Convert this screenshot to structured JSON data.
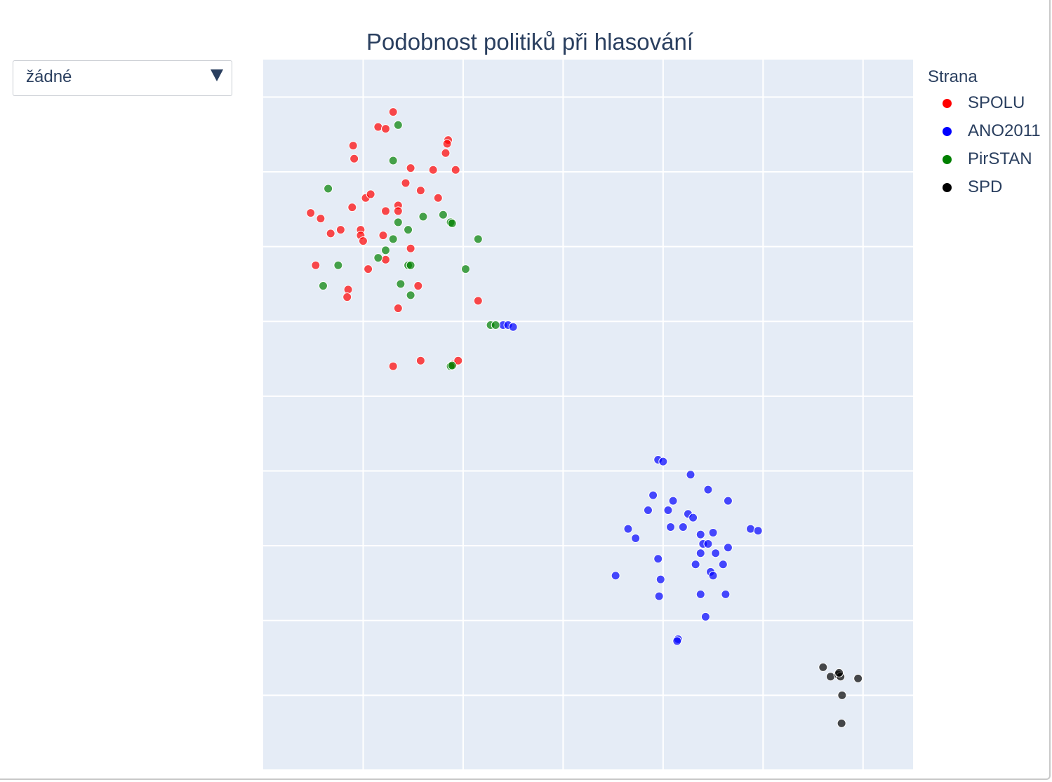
{
  "dropdown": {
    "selected": "žádné"
  },
  "chart_data": {
    "type": "scatter",
    "title": "Podobnost politiků při hlasování",
    "xlabel": "",
    "ylabel": "",
    "xlim": [
      0,
      13
    ],
    "ylim": [
      0,
      19
    ],
    "grid": true,
    "legend_title": "Strana",
    "legend_position": "top-right",
    "series": [
      {
        "name": "SPOLU",
        "color": "#ff0000",
        "points": [
          [
            2.6,
            17.6
          ],
          [
            2.3,
            17.2
          ],
          [
            2.45,
            17.15
          ],
          [
            3.7,
            16.85
          ],
          [
            3.68,
            16.75
          ],
          [
            1.8,
            16.7
          ],
          [
            3.65,
            16.5
          ],
          [
            1.82,
            16.35
          ],
          [
            2.95,
            16.1
          ],
          [
            3.4,
            16.05
          ],
          [
            3.85,
            16.05
          ],
          [
            2.85,
            15.7
          ],
          [
            3.15,
            15.5
          ],
          [
            2.05,
            15.3
          ],
          [
            2.15,
            15.4
          ],
          [
            3.5,
            15.3
          ],
          [
            1.78,
            15.05
          ],
          [
            2.7,
            15.1
          ],
          [
            2.7,
            14.95
          ],
          [
            2.45,
            14.95
          ],
          [
            0.95,
            14.9
          ],
          [
            1.15,
            14.75
          ],
          [
            1.55,
            14.45
          ],
          [
            1.35,
            14.35
          ],
          [
            1.95,
            14.45
          ],
          [
            1.95,
            14.3
          ],
          [
            2.0,
            14.15
          ],
          [
            2.4,
            14.3
          ],
          [
            2.95,
            13.95
          ],
          [
            2.45,
            13.65
          ],
          [
            1.05,
            13.5
          ],
          [
            2.1,
            13.4
          ],
          [
            3.1,
            12.95
          ],
          [
            1.7,
            12.85
          ],
          [
            1.68,
            12.65
          ],
          [
            2.7,
            12.35
          ],
          [
            4.3,
            12.55
          ],
          [
            3.15,
            10.95
          ],
          [
            2.6,
            10.8
          ],
          [
            3.8,
            10.85
          ],
          [
            3.9,
            10.95
          ]
        ]
      },
      {
        "name": "ANO2011",
        "color": "#0000ff",
        "points": [
          [
            4.8,
            11.9
          ],
          [
            4.9,
            11.9
          ],
          [
            5.0,
            11.85
          ],
          [
            7.9,
            8.3
          ],
          [
            8.0,
            8.25
          ],
          [
            8.55,
            7.9
          ],
          [
            8.9,
            7.5
          ],
          [
            7.8,
            7.35
          ],
          [
            8.2,
            7.2
          ],
          [
            9.3,
            7.2
          ],
          [
            7.7,
            6.95
          ],
          [
            8.1,
            6.95
          ],
          [
            8.5,
            6.85
          ],
          [
            8.6,
            6.75
          ],
          [
            8.15,
            6.5
          ],
          [
            8.4,
            6.5
          ],
          [
            7.3,
            6.45
          ],
          [
            9.75,
            6.45
          ],
          [
            9.9,
            6.4
          ],
          [
            8.75,
            6.3
          ],
          [
            9.0,
            6.35
          ],
          [
            7.45,
            6.2
          ],
          [
            8.8,
            6.05
          ],
          [
            8.9,
            6.05
          ],
          [
            9.3,
            5.95
          ],
          [
            7.9,
            5.65
          ],
          [
            8.75,
            5.8
          ],
          [
            9.05,
            5.8
          ],
          [
            9.2,
            5.5
          ],
          [
            8.65,
            5.5
          ],
          [
            7.05,
            5.2
          ],
          [
            8.95,
            5.3
          ],
          [
            9.0,
            5.2
          ],
          [
            7.95,
            5.1
          ],
          [
            7.92,
            4.65
          ],
          [
            8.75,
            4.7
          ],
          [
            9.25,
            4.7
          ],
          [
            8.85,
            4.1
          ],
          [
            8.3,
            3.5
          ],
          [
            8.28,
            3.45
          ]
        ]
      },
      {
        "name": "PirSTAN",
        "color": "#008000",
        "points": [
          [
            2.7,
            17.25
          ],
          [
            2.6,
            16.3
          ],
          [
            1.3,
            15.55
          ],
          [
            3.2,
            14.8
          ],
          [
            3.6,
            14.85
          ],
          [
            2.7,
            14.65
          ],
          [
            3.75,
            14.65
          ],
          [
            3.78,
            14.62
          ],
          [
            2.9,
            14.45
          ],
          [
            2.6,
            14.2
          ],
          [
            4.3,
            14.2
          ],
          [
            2.45,
            13.9
          ],
          [
            2.3,
            13.7
          ],
          [
            1.5,
            13.5
          ],
          [
            2.9,
            13.5
          ],
          [
            2.95,
            13.5
          ],
          [
            4.05,
            13.4
          ],
          [
            2.75,
            13.0
          ],
          [
            1.2,
            12.95
          ],
          [
            2.95,
            12.7
          ],
          [
            4.55,
            11.9
          ],
          [
            4.65,
            11.9
          ],
          [
            3.75,
            10.8
          ],
          [
            3.78,
            10.82
          ]
        ]
      },
      {
        "name": "SPD",
        "color": "#000000",
        "points": [
          [
            11.2,
            2.75
          ],
          [
            11.35,
            2.5
          ],
          [
            11.5,
            2.55
          ],
          [
            11.55,
            2.5
          ],
          [
            11.52,
            2.6
          ],
          [
            11.9,
            2.45
          ],
          [
            11.58,
            2.0
          ],
          [
            11.57,
            1.25
          ]
        ]
      }
    ]
  }
}
